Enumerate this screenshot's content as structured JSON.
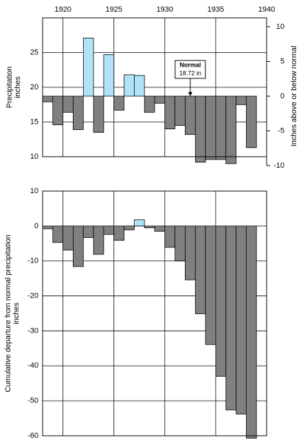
{
  "chart_data": [
    {
      "type": "bar",
      "ylabel": [
        "Precipitation",
        "inches"
      ],
      "y2label": "Inches above or below normal",
      "x": [
        1918,
        1919,
        1920,
        1921,
        1922,
        1923,
        1924,
        1925,
        1926,
        1927,
        1928,
        1929,
        1930,
        1931,
        1932,
        1933,
        1934,
        1935,
        1936,
        1937,
        1938
      ],
      "values": [
        17.9,
        14.6,
        16.4,
        13.9,
        27.1,
        13.5,
        24.7,
        16.7,
        21.8,
        21.7,
        16.4,
        17.7,
        14.0,
        14.5,
        13.2,
        9.2,
        9.6,
        9.6,
        9.0,
        17.5,
        11.3
      ],
      "normal": 18.72,
      "annotation": [
        "Normal",
        "18.72 in"
      ],
      "annotation_x": 1932,
      "above_color": "#b0e2f8",
      "below_color": "#808080",
      "xlim": [
        1918,
        1940
      ],
      "xticks": [
        1920,
        1925,
        1930,
        1935,
        1940
      ],
      "ylim": [
        10,
        30
      ],
      "yticks": [
        10,
        15,
        20,
        25
      ],
      "y2lim": [
        -10,
        10
      ],
      "y2ticks": [
        -10,
        -5,
        0,
        5,
        10
      ],
      "grid": true
    },
    {
      "type": "bar",
      "ylabel": [
        "Cumulative departure from normal precipitation",
        "inches"
      ],
      "x": [
        1918,
        1919,
        1920,
        1921,
        1922,
        1923,
        1924,
        1925,
        1926,
        1927,
        1928,
        1929,
        1930,
        1931,
        1932,
        1933,
        1934,
        1935,
        1936,
        1937,
        1938
      ],
      "values": [
        -0.8,
        -4.7,
        -6.9,
        -11.6,
        -3.3,
        -8.1,
        -2.4,
        -4.1,
        -1.1,
        1.8,
        -0.5,
        -1.5,
        -6.1,
        -10.0,
        -15.4,
        -25.1,
        -33.9,
        -43.0,
        -52.6,
        -53.8,
        -60.7
      ],
      "above_color": "#b0e2f8",
      "below_color": "#808080",
      "xlim": [
        1918,
        1940
      ],
      "ylim": [
        -60,
        10
      ],
      "yticks": [
        -60,
        -50,
        -40,
        -30,
        -20,
        -10,
        0,
        10
      ],
      "grid": true
    }
  ]
}
